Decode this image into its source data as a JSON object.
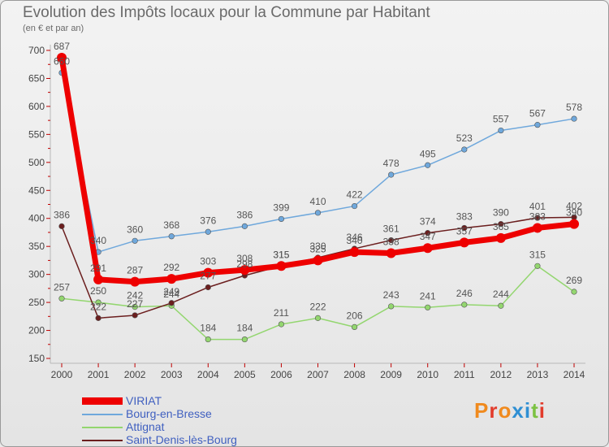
{
  "title": "Evolution des Impôts locaux pour la Commune par Habitant",
  "subtitle": "(en € et par an)",
  "brand": "Proxiti",
  "chart_data": {
    "type": "line",
    "title": "Evolution des Impôts locaux pour la Commune par Habitant",
    "ylabel": "(en € et par an)",
    "xlabel": "",
    "x": [
      "2000",
      "2001",
      "2002",
      "2003",
      "2004",
      "2005",
      "2006",
      "2007",
      "2008",
      "2009",
      "2010",
      "2011",
      "2012",
      "2013",
      "2014"
    ],
    "ylim": [
      150,
      700
    ],
    "yticks": [
      150,
      200,
      250,
      300,
      350,
      400,
      450,
      500,
      550,
      600,
      650,
      700
    ],
    "grid": false,
    "series": [
      {
        "name": "VIRIAT",
        "color": "#ee0000",
        "values": [
          687,
          291,
          287,
          292,
          303,
          308,
          315,
          325,
          340,
          338,
          347,
          357,
          365,
          383,
          390
        ]
      },
      {
        "name": "Bourg-en-Bresse",
        "color": "#6fa8dc",
        "values": [
          660,
          340,
          360,
          368,
          376,
          386,
          399,
          410,
          422,
          478,
          495,
          523,
          557,
          567,
          578
        ]
      },
      {
        "name": "Attignat",
        "color": "#93d66f",
        "values": [
          257,
          250,
          242,
          244,
          184,
          184,
          211,
          222,
          206,
          243,
          241,
          246,
          244,
          315,
          269
        ]
      },
      {
        "name": "Saint-Denis-lès-Bourg",
        "color": "#6b1e1e",
        "values": [
          386,
          222,
          227,
          249,
          277,
          298,
          315,
          330,
          346,
          361,
          374,
          383,
          390,
          401,
          402
        ]
      }
    ]
  }
}
